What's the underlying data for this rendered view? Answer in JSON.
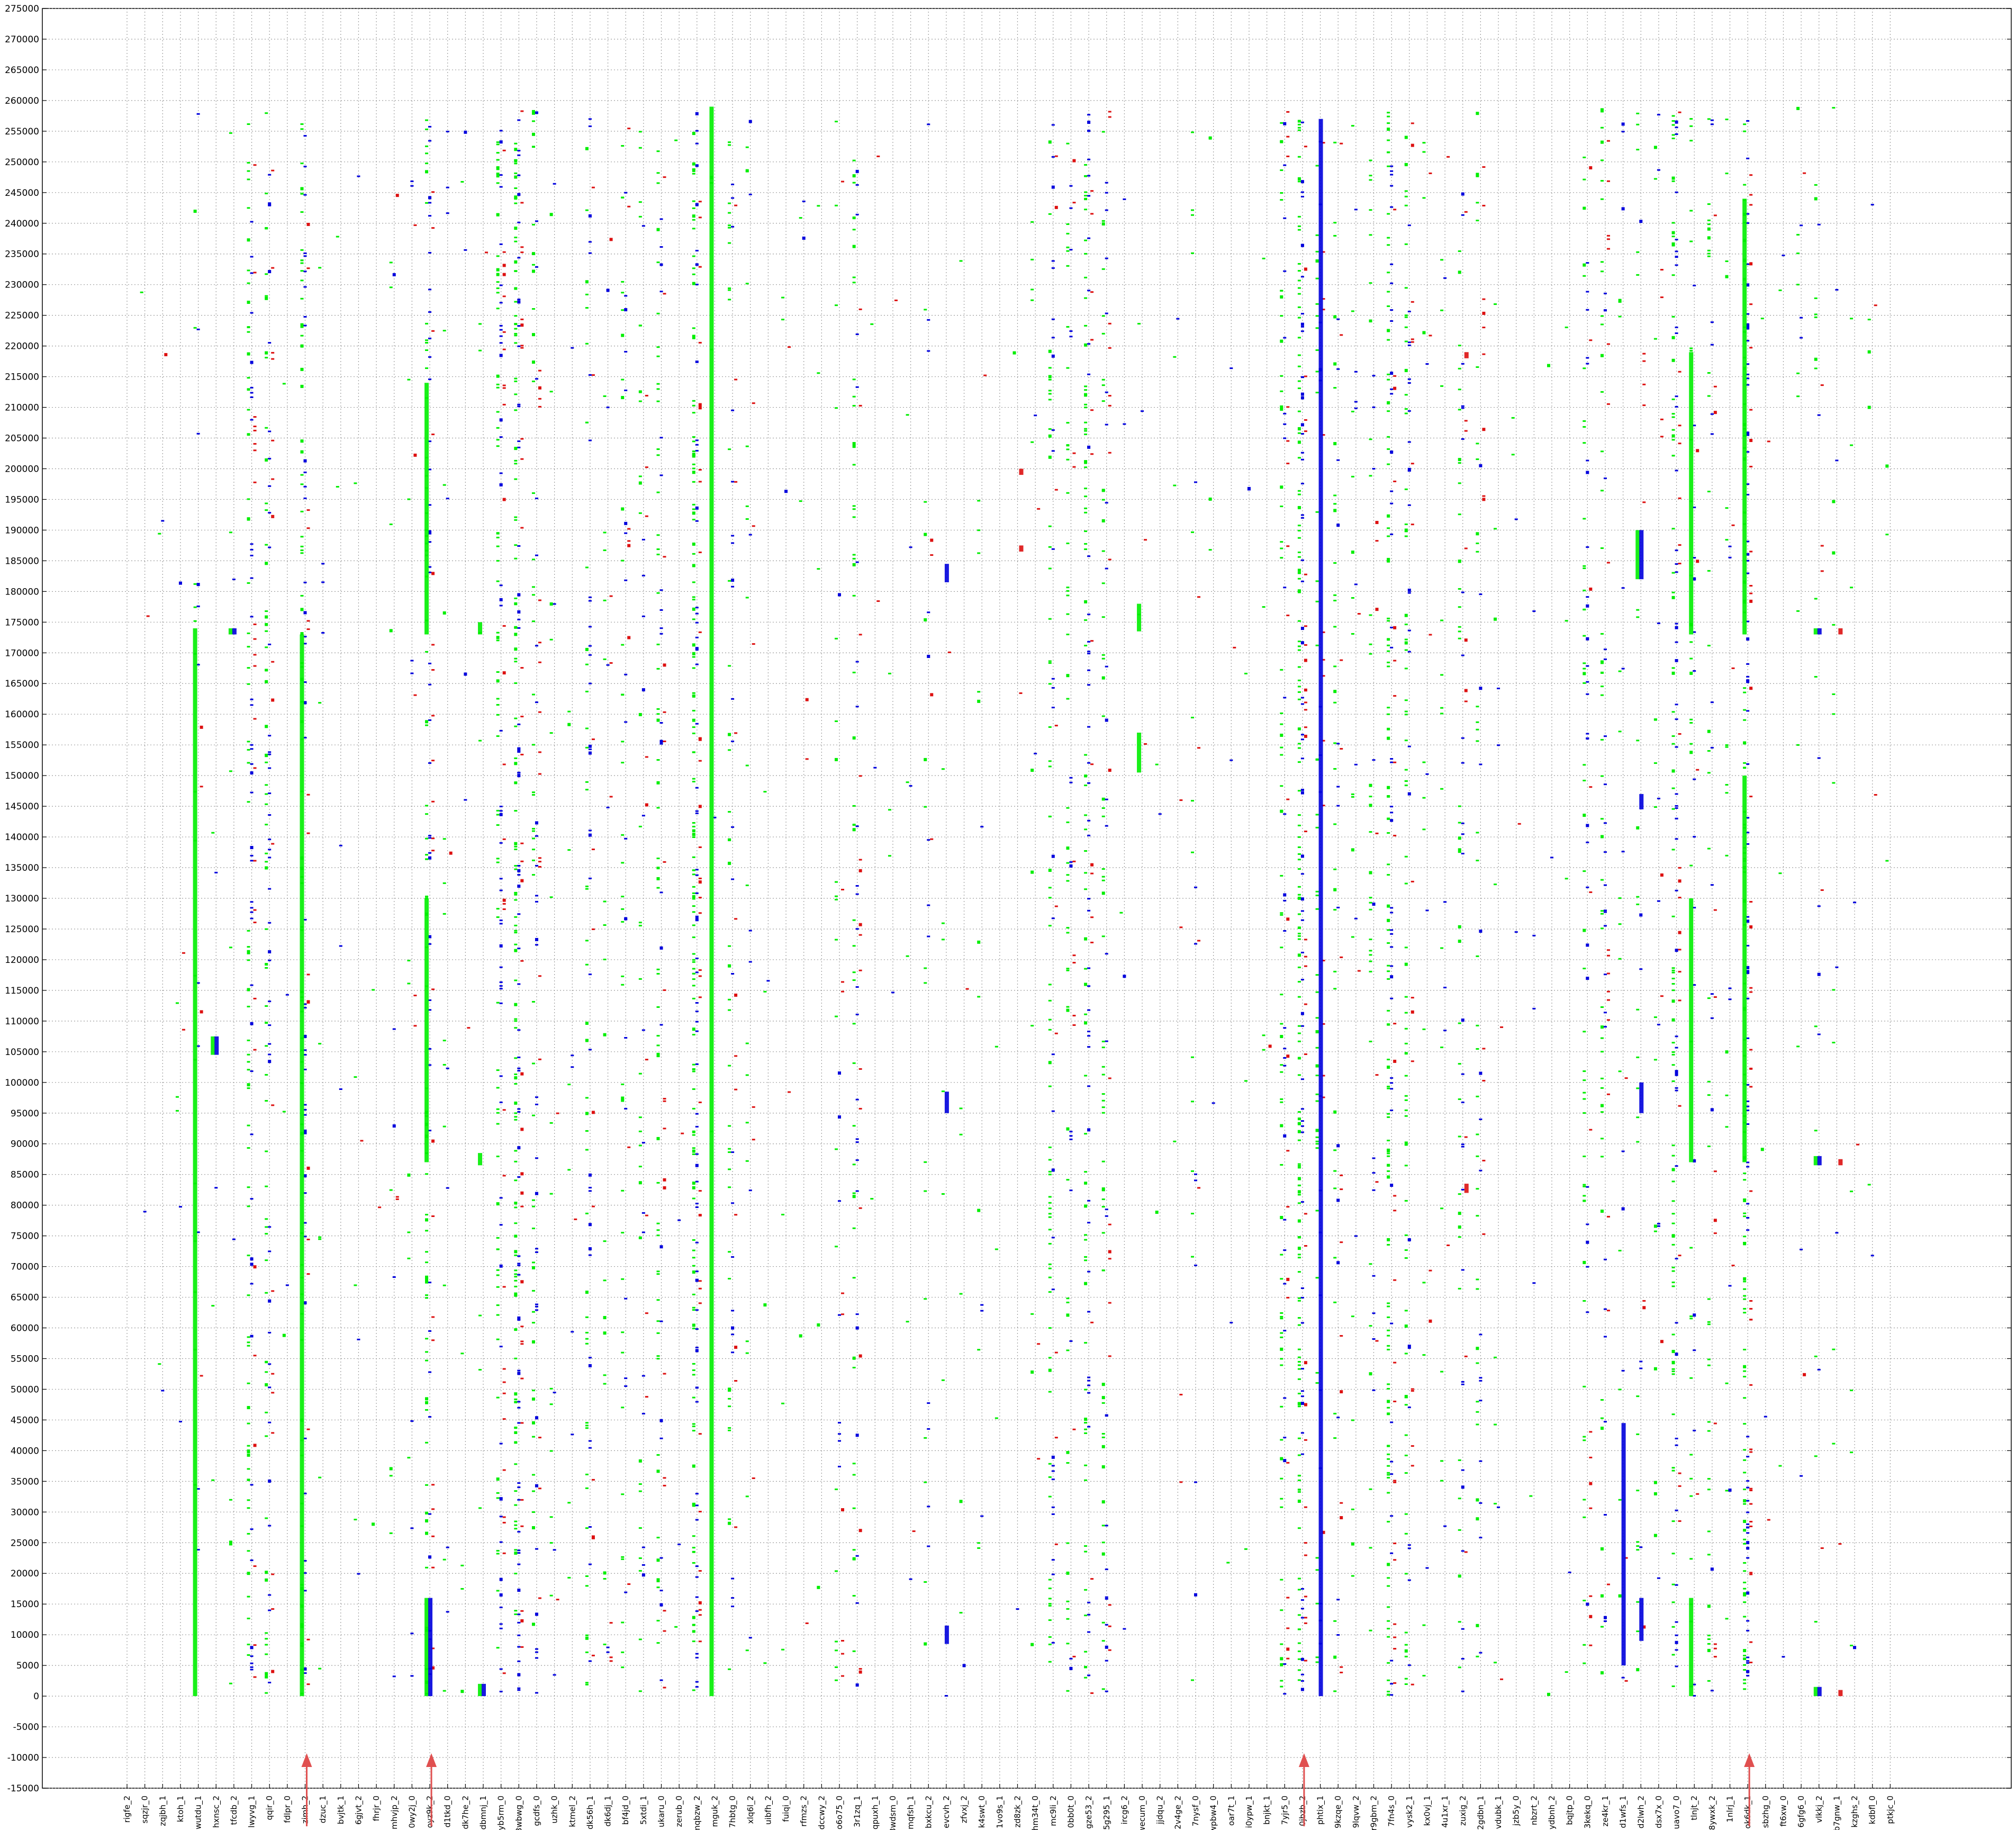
{
  "chart_data": {
    "type": "scatter",
    "title": "",
    "xlabel": "",
    "ylabel": "",
    "ylim": [
      -15000,
      275000
    ],
    "yticks": [
      -15000,
      -10000,
      -5000,
      0,
      5000,
      10000,
      15000,
      20000,
      25000,
      30000,
      35000,
      40000,
      45000,
      50000,
      55000,
      60000,
      65000,
      70000,
      75000,
      80000,
      85000,
      90000,
      95000,
      100000,
      105000,
      110000,
      115000,
      120000,
      125000,
      130000,
      135000,
      140000,
      145000,
      150000,
      155000,
      160000,
      165000,
      170000,
      175000,
      180000,
      185000,
      190000,
      195000,
      200000,
      205000,
      210000,
      215000,
      220000,
      225000,
      230000,
      235000,
      240000,
      245000,
      250000,
      255000,
      260000,
      265000,
      270000,
      275000
    ],
    "grid": true,
    "colors": {
      "green": "#00ee00",
      "blue": "#0000dd",
      "red": "#dd1111",
      "arrow": "#e05050"
    },
    "categories": [
      "rigfe_2",
      "sqzjr_0",
      "zqjbh_1",
      "ktoh_1",
      "wutdu_1",
      "hxnsc_2",
      "tfcdb_2",
      "lwyvg_1",
      "qqir_0",
      "fdlpr_0",
      "zimh_2",
      "dzuc_1",
      "bvjtk_1",
      "6gjvt_2",
      "fhrjr_0",
      "mhvjp_2",
      "0wy2j_0",
      "oyz9k_2",
      "d1tkd_0",
      "dk7he_2",
      "dbmnj_1",
      "yb5rm_0",
      "3wbwg_0",
      "gcdfs_0",
      "uzhk_0",
      "ktmel_2",
      "dk56h_1",
      "dk6dj_1",
      "bf4jd_0",
      "5xtdi_1",
      "ukaru_0",
      "zerub_0",
      "mqbzw_2",
      "mguk_2",
      "7hbtg_0",
      "xlq6l_2",
      "uibfh_2",
      "fuiqi_0",
      "rfmzs_2",
      "dccwy_2",
      "o6o75_0",
      "3r1zq_1",
      "qpuxh_1",
      "3wdsm_0",
      "mqfsh_1",
      "bxkcu_2",
      "evcvh_2",
      "zfvxj_2",
      "k4swt_0",
      "1vo9s_1",
      "zd8zk_2",
      "hm34t_0",
      "mc9li_2",
      "0bb0t_0",
      "gze53_2",
      "5g295_1",
      "ircg6_2",
      "wecum_0",
      "jjdqu_2",
      "2v4ge_2",
      "7nysf_0",
      "wpbw4_0",
      "oar7t_1",
      "i0ypw_1",
      "bnjkt_1",
      "7yjr5_0",
      "0jbzb_2",
      "phtix_1",
      "9kzqe_0",
      "9lqvw_2",
      "r9gbm_2",
      "7fn4s_0",
      "vysk2_1",
      "kx0vj_1",
      "4u1xr_1",
      "zuxig_2",
      "2gdbn_1",
      "vdubk_1",
      "jzb5y_0",
      "nbzrt_2",
      "ydbnh_2",
      "bqjtp_0",
      "3kekq_0",
      "ze4kr_1",
      "d1wfs_1",
      "d2lwh_2",
      "dsx7x_0",
      "uavo7_0",
      "tlnjt_2",
      "8ywxk_2",
      "1nlrj_1",
      "ok6dk_1",
      "sbzhg_0",
      "ft6xw_0",
      "6gfg6_0",
      "vlkkj_2",
      "b7gnw_1",
      "kzghs_2",
      "kdbfl_0",
      "ptkjc_0"
    ],
    "arrows_at": [
      "zimh_2",
      "oyz9k_2",
      "0jbzb_2",
      "ok6dk_1"
    ],
    "density": [
      0.0,
      0.01,
      0.02,
      0.03,
      0.12,
      0.02,
      0.04,
      0.55,
      0.5,
      0.02,
      0.55,
      0.04,
      0.02,
      0.03,
      0.01,
      0.06,
      0.08,
      0.55,
      0.08,
      0.04,
      0.03,
      0.6,
      0.9,
      0.4,
      0.08,
      0.05,
      0.35,
      0.12,
      0.25,
      0.22,
      0.4,
      0.02,
      0.95,
      0.02,
      0.3,
      0.12,
      0.02,
      0.03,
      0.03,
      0.02,
      0.15,
      0.35,
      0.02,
      0.02,
      0.03,
      0.12,
      0.03,
      0.03,
      0.06,
      0.01,
      0.01,
      0.06,
      0.4,
      0.3,
      0.55,
      0.4,
      0.02,
      0.02,
      0.01,
      0.03,
      0.1,
      0.02,
      0.02,
      0.02,
      0.02,
      0.45,
      0.95,
      0.3,
      0.25,
      0.1,
      0.2,
      0.7,
      0.45,
      0.08,
      0.08,
      0.3,
      0.25,
      0.05,
      0.02,
      0.02,
      0.01,
      0.02,
      0.35,
      0.35,
      0.1,
      0.15,
      0.12,
      0.6,
      0.2,
      0.25,
      0.1,
      0.9,
      0.02,
      0.02,
      0.06,
      0.1,
      0.06,
      0.04,
      0.03,
      0.01
    ],
    "blocks": [
      {
        "cat": "wutdu_1",
        "color": "green",
        "y0": 0,
        "y1": 174000
      },
      {
        "cat": "tfcdb_2",
        "color": "green",
        "y0": 173000,
        "y1": 174000
      },
      {
        "cat": "tfcdb_2",
        "color": "blue",
        "y0": 173000,
        "y1": 174000
      },
      {
        "cat": "hxnsc_2",
        "color": "green",
        "y0": 104500,
        "y1": 107500
      },
      {
        "cat": "hxnsc_2",
        "color": "blue",
        "y0": 104500,
        "y1": 107500
      },
      {
        "cat": "zimh_2",
        "color": "green",
        "y0": 0,
        "y1": 173000
      },
      {
        "cat": "oyz9k_2",
        "color": "green",
        "y0": 173000,
        "y1": 214000
      },
      {
        "cat": "oyz9k_2",
        "color": "green",
        "y0": 87000,
        "y1": 130000
      },
      {
        "cat": "oyz9k_2",
        "color": "green",
        "y0": 0,
        "y1": 16000
      },
      {
        "cat": "oyz9k_2",
        "color": "blue",
        "y0": 0,
        "y1": 16000
      },
      {
        "cat": "dbmnj_1",
        "color": "green",
        "y0": 173000,
        "y1": 175000
      },
      {
        "cat": "dbmnj_1",
        "color": "green",
        "y0": 86500,
        "y1": 88500
      },
      {
        "cat": "dbmnj_1",
        "color": "green",
        "y0": 0,
        "y1": 2000
      },
      {
        "cat": "dbmnj_1",
        "color": "blue",
        "y0": 0,
        "y1": 2000
      },
      {
        "cat": "mguk_2",
        "color": "green",
        "y0": 0,
        "y1": 259000
      },
      {
        "cat": "evcvh_2",
        "color": "blue",
        "y0": 181500,
        "y1": 184500
      },
      {
        "cat": "evcvh_2",
        "color": "blue",
        "y0": 95000,
        "y1": 98500
      },
      {
        "cat": "evcvh_2",
        "color": "blue",
        "y0": 8500,
        "y1": 11500
      },
      {
        "cat": "zd8zk_2",
        "color": "red",
        "y0": 186500,
        "y1": 187500
      },
      {
        "cat": "zd8zk_2",
        "color": "red",
        "y0": 199000,
        "y1": 200000
      },
      {
        "cat": "wecum_0",
        "color": "green",
        "y0": 173500,
        "y1": 178000
      },
      {
        "cat": "wecum_0",
        "color": "green",
        "y0": 150500,
        "y1": 157000
      },
      {
        "cat": "phtix_1",
        "color": "blue",
        "y0": 0,
        "y1": 257000
      },
      {
        "cat": "d2lwh_2",
        "color": "green",
        "y0": 182000,
        "y1": 190000
      },
      {
        "cat": "d2lwh_2",
        "color": "blue",
        "y0": 182000,
        "y1": 190000
      },
      {
        "cat": "d2lwh_2",
        "color": "blue",
        "y0": 144500,
        "y1": 147000
      },
      {
        "cat": "d2lwh_2",
        "color": "blue",
        "y0": 95000,
        "y1": 100000
      },
      {
        "cat": "d2lwh_2",
        "color": "blue",
        "y0": 9000,
        "y1": 16000
      },
      {
        "cat": "d1wfs_1",
        "color": "blue",
        "y0": 5000,
        "y1": 44500
      },
      {
        "cat": "ok6dk_1",
        "color": "green",
        "y0": 173000,
        "y1": 244000
      },
      {
        "cat": "ok6dk_1",
        "color": "green",
        "y0": 87000,
        "y1": 150000
      },
      {
        "cat": "tlnjt_2",
        "color": "green",
        "y0": 0,
        "y1": 16000
      },
      {
        "cat": "tlnjt_2",
        "color": "green",
        "y0": 87000,
        "y1": 130000
      },
      {
        "cat": "tlnjt_2",
        "color": "green",
        "y0": 173000,
        "y1": 219000
      },
      {
        "cat": "vlkkj_2",
        "color": "green",
        "y0": 173000,
        "y1": 174000
      },
      {
        "cat": "vlkkj_2",
        "color": "blue",
        "y0": 173000,
        "y1": 174000
      },
      {
        "cat": "vlkkj_2",
        "color": "green",
        "y0": 86500,
        "y1": 88000
      },
      {
        "cat": "vlkkj_2",
        "color": "blue",
        "y0": 86500,
        "y1": 88000
      },
      {
        "cat": "vlkkj_2",
        "color": "green",
        "y0": 0,
        "y1": 1500
      },
      {
        "cat": "vlkkj_2",
        "color": "blue",
        "y0": 0,
        "y1": 1500
      },
      {
        "cat": "b7gnw_1",
        "color": "red",
        "y0": 173000,
        "y1": 174000
      },
      {
        "cat": "b7gnw_1",
        "color": "red",
        "y0": 86500,
        "y1": 87500
      },
      {
        "cat": "b7gnw_1",
        "color": "red",
        "y0": 0,
        "y1": 1000
      },
      {
        "cat": "zuxig_2",
        "color": "red",
        "y0": 218000,
        "y1": 219000
      },
      {
        "cat": "zuxig_2",
        "color": "red",
        "y0": 82000,
        "y1": 83500
      }
    ]
  }
}
